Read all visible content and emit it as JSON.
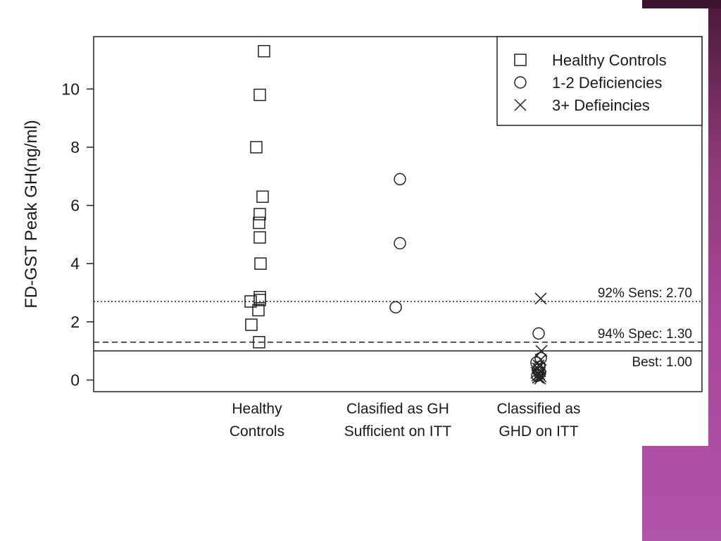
{
  "chart_data": {
    "type": "scatter",
    "ylabel": "FD-GST Peak GH(ng/ml)",
    "ylim": [
      -0.4,
      11.8
    ],
    "yticks": [
      0,
      2,
      4,
      6,
      8,
      10
    ],
    "categories": [
      {
        "line1": "Healthy",
        "line2": "Controls"
      },
      {
        "line1": "Clasified as GH",
        "line2": "Sufficient on ITT"
      },
      {
        "line1": "Classified as",
        "line2": "GHD on ITT"
      }
    ],
    "series": [
      {
        "name": "Healthy Controls",
        "marker": "square",
        "points": [
          {
            "cat": 0,
            "jitter": 0.1,
            "y": 11.3
          },
          {
            "cat": 0,
            "jitter": 0.04,
            "y": 9.8
          },
          {
            "cat": 0,
            "jitter": -0.01,
            "y": 8.0
          },
          {
            "cat": 0,
            "jitter": 0.08,
            "y": 6.3
          },
          {
            "cat": 0,
            "jitter": 0.04,
            "y": 5.7
          },
          {
            "cat": 0,
            "jitter": 0.03,
            "y": 5.4
          },
          {
            "cat": 0,
            "jitter": 0.04,
            "y": 4.9
          },
          {
            "cat": 0,
            "jitter": 0.05,
            "y": 4.0
          },
          {
            "cat": 0,
            "jitter": 0.04,
            "y": 2.85
          },
          {
            "cat": 0,
            "jitter": 0.04,
            "y": 2.75
          },
          {
            "cat": 0,
            "jitter": -0.09,
            "y": 2.7
          },
          {
            "cat": 0,
            "jitter": 0.02,
            "y": 2.4
          },
          {
            "cat": 0,
            "jitter": -0.08,
            "y": 1.9
          },
          {
            "cat": 0,
            "jitter": 0.03,
            "y": 1.3
          }
        ]
      },
      {
        "name": "1-2 Deficiencies",
        "marker": "circle",
        "points": [
          {
            "cat": 1,
            "jitter": 0.03,
            "y": 6.9
          },
          {
            "cat": 1,
            "jitter": 0.03,
            "y": 4.7
          },
          {
            "cat": 1,
            "jitter": -0.03,
            "y": 2.5
          },
          {
            "cat": 2,
            "jitter": 0.0,
            "y": 1.6
          },
          {
            "cat": 2,
            "jitter": 0.03,
            "y": 0.75
          },
          {
            "cat": 2,
            "jitter": -0.03,
            "y": 0.6
          },
          {
            "cat": 2,
            "jitter": 0.01,
            "y": 0.45
          },
          {
            "cat": 2,
            "jitter": -0.01,
            "y": 0.35
          },
          {
            "cat": 2,
            "jitter": 0.02,
            "y": 0.25
          },
          {
            "cat": 2,
            "jitter": -0.02,
            "y": 0.15
          }
        ]
      },
      {
        "name": "3+ Defieincies",
        "marker": "x",
        "points": [
          {
            "cat": 2,
            "jitter": 0.03,
            "y": 2.8
          },
          {
            "cat": 2,
            "jitter": 0.04,
            "y": 1.0
          },
          {
            "cat": 2,
            "jitter": 0.03,
            "y": 0.7
          },
          {
            "cat": 2,
            "jitter": 0.0,
            "y": 0.5
          },
          {
            "cat": 2,
            "jitter": -0.01,
            "y": 0.4
          },
          {
            "cat": 2,
            "jitter": 0.02,
            "y": 0.3
          },
          {
            "cat": 2,
            "jitter": -0.03,
            "y": 0.25
          },
          {
            "cat": 2,
            "jitter": 0.01,
            "y": 0.2
          },
          {
            "cat": 2,
            "jitter": -0.02,
            "y": 0.15
          },
          {
            "cat": 2,
            "jitter": 0.03,
            "y": 0.12
          },
          {
            "cat": 2,
            "jitter": 0.0,
            "y": 0.1
          },
          {
            "cat": 2,
            "jitter": -0.01,
            "y": 0.08
          },
          {
            "cat": 2,
            "jitter": 0.02,
            "y": 0.05
          }
        ]
      }
    ],
    "reference_lines": [
      {
        "label": "92% Sens: 2.70",
        "y": 2.7,
        "style": "dotted"
      },
      {
        "label": "94% Spec: 1.30",
        "y": 1.3,
        "style": "dashed"
      },
      {
        "label": "Best: 1.00",
        "y": 1.0,
        "style": "solid"
      }
    ],
    "legend": {
      "position": "top-right"
    },
    "grid": false
  }
}
